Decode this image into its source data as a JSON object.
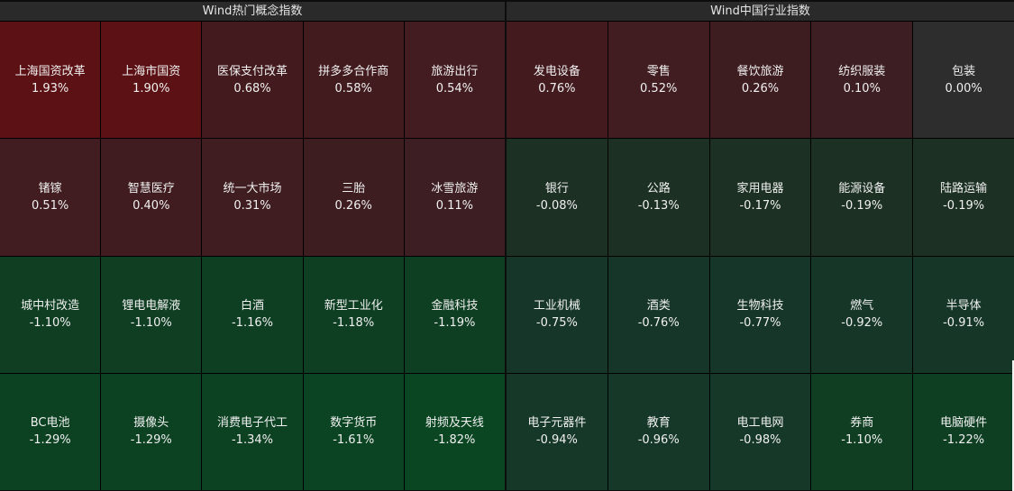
{
  "left_panel": {
    "title": "Wind热门概念指数",
    "cells": [
      {
        "name": "上海国资改革",
        "pct": "1.93%",
        "color": "#5c1114"
      },
      {
        "name": "上海市国资",
        "pct": "1.90%",
        "color": "#5c1114"
      },
      {
        "name": "医保支付改革",
        "pct": "0.68%",
        "color": "#431a1e"
      },
      {
        "name": "拼多多合作商",
        "pct": "0.58%",
        "color": "#421b1f"
      },
      {
        "name": "旅游出行",
        "pct": "0.54%",
        "color": "#421c20"
      },
      {
        "name": "锗镓",
        "pct": "0.51%",
        "color": "#411c20"
      },
      {
        "name": "智慧医疗",
        "pct": "0.40%",
        "color": "#401c20"
      },
      {
        "name": "统一大市场",
        "pct": "0.31%",
        "color": "#3f1d21"
      },
      {
        "name": "三胎",
        "pct": "0.26%",
        "color": "#3e1d21"
      },
      {
        "name": "冰雪旅游",
        "pct": "0.11%",
        "color": "#3d1e22"
      },
      {
        "name": "城中村改造",
        "pct": "-1.10%",
        "color": "#0f3e22"
      },
      {
        "name": "锂电电解液",
        "pct": "-1.10%",
        "color": "#0f3e22"
      },
      {
        "name": "白酒",
        "pct": "-1.16%",
        "color": "#0e3f22"
      },
      {
        "name": "新型工业化",
        "pct": "-1.18%",
        "color": "#0e3f22"
      },
      {
        "name": "金融科技",
        "pct": "-1.19%",
        "color": "#0e3f22"
      },
      {
        "name": "BC电池",
        "pct": "-1.29%",
        "color": "#0c4122"
      },
      {
        "name": "摄像头",
        "pct": "-1.29%",
        "color": "#0c4122"
      },
      {
        "name": "消费电子代工",
        "pct": "-1.34%",
        "color": "#0c4122"
      },
      {
        "name": "数字货币",
        "pct": "-1.61%",
        "color": "#0b4422"
      },
      {
        "name": "射频及天线",
        "pct": "-1.82%",
        "color": "#0a4622"
      }
    ]
  },
  "right_panel": {
    "title": "Wind中国行业指数",
    "cells": [
      {
        "name": "发电设备",
        "pct": "0.76%",
        "color": "#431b1f"
      },
      {
        "name": "零售",
        "pct": "0.52%",
        "color": "#411c20"
      },
      {
        "name": "餐饮旅游",
        "pct": "0.26%",
        "color": "#3e1d21"
      },
      {
        "name": "纺织服装",
        "pct": "0.10%",
        "color": "#3d1e22"
      },
      {
        "name": "包装",
        "pct": "0.00%",
        "color": "#2d2d2d"
      },
      {
        "name": "银行",
        "pct": "-0.08%",
        "color": "#1d3024"
      },
      {
        "name": "公路",
        "pct": "-0.13%",
        "color": "#1c3124"
      },
      {
        "name": "家用电器",
        "pct": "-0.17%",
        "color": "#1c3124"
      },
      {
        "name": "能源设备",
        "pct": "-0.19%",
        "color": "#1c3124"
      },
      {
        "name": "陆路运输",
        "pct": "-0.19%",
        "color": "#1c3124"
      },
      {
        "name": "工业机械",
        "pct": "-0.75%",
        "color": "#17362a"
      },
      {
        "name": "酒类",
        "pct": "-0.76%",
        "color": "#17362a"
      },
      {
        "name": "生物科技",
        "pct": "-0.77%",
        "color": "#17362a"
      },
      {
        "name": "燃气",
        "pct": "-0.92%",
        "color": "#163727"
      },
      {
        "name": "半导体",
        "pct": "-0.91%",
        "color": "#163727"
      },
      {
        "name": "电子元器件",
        "pct": "-0.94%",
        "color": "#163828"
      },
      {
        "name": "教育",
        "pct": "-0.96%",
        "color": "#163828"
      },
      {
        "name": "电工电网",
        "pct": "-0.98%",
        "color": "#163828"
      },
      {
        "name": "券商",
        "pct": "-1.10%",
        "color": "#0f3e22"
      },
      {
        "name": "电脑硬件",
        "pct": "-1.22%",
        "color": "#0e3f22"
      }
    ]
  }
}
